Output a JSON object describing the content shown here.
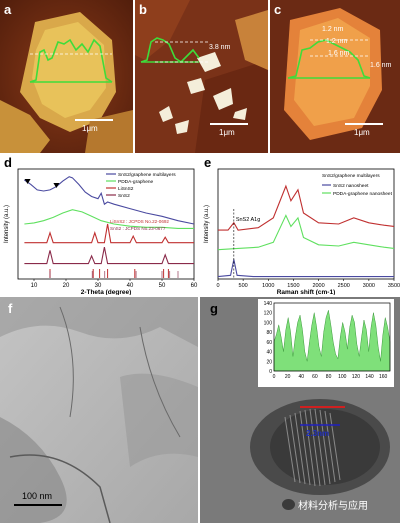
{
  "panels": {
    "a": {
      "label": "a",
      "scale": "1μm"
    },
    "b": {
      "label": "b",
      "scale": "1μm",
      "height": "3.8 nm"
    },
    "c": {
      "label": "c",
      "scale": "1μm",
      "heights": [
        "1.2 nm",
        "1.2 nm",
        "1.6 nm",
        "1.6 nm"
      ]
    },
    "d": {
      "label": "d"
    },
    "e": {
      "label": "e"
    },
    "f": {
      "label": "f",
      "scale": "100 nm"
    },
    "g": {
      "label": "g",
      "scale": "2.3nm"
    }
  },
  "watermark": {
    "text": "材料分析与应用"
  },
  "colors": {
    "afm_bg": "#6b2a14",
    "flake_yellow": "#e8c25a",
    "profile_green": "#3fdc3a",
    "sns2_graphene": "#4a4aa0",
    "pdda_graphene": "#5fe05f",
    "lisns2": "#c03030",
    "sns2": "#8a2a4a"
  },
  "chart_data": [
    {
      "type": "line",
      "panel": "d",
      "xlabel": "2-Theta (degree)",
      "ylabel": "Intensity (a.u.)",
      "xlim": [
        5,
        60
      ],
      "xticks": [
        10,
        20,
        30,
        40,
        50,
        60
      ],
      "legend_position": "top-right",
      "series": [
        {
          "name": "SnS2/graphene multilayers",
          "x": [
            7,
            9,
            11,
            13,
            15,
            17,
            19,
            21,
            22,
            24,
            26,
            28,
            30,
            31,
            32,
            33,
            35,
            40,
            45,
            50,
            55,
            60
          ],
          "y": [
            9.0,
            8.6,
            8.1,
            8.0,
            8.1,
            8.4,
            8.9,
            9.3,
            9.2,
            8.6,
            7.9,
            7.5,
            7.3,
            7.8,
            6.8,
            7.0,
            6.8,
            6.4,
            6.0,
            5.7,
            5.3,
            5.0
          ]
        },
        {
          "name": "PDDA-graphene",
          "x": [
            7,
            10,
            13,
            16,
            19,
            22,
            25,
            28,
            31,
            35,
            40,
            45,
            50,
            55,
            60
          ],
          "y": [
            5.0,
            5.1,
            5.3,
            5.6,
            6.0,
            6.3,
            6.1,
            5.7,
            5.3,
            5.0,
            4.8,
            4.7,
            4.7,
            4.6,
            4.6
          ]
        },
        {
          "name": "LiSnS2",
          "x": [
            7,
            14,
            15,
            16,
            20,
            28,
            29,
            30,
            32,
            33,
            34,
            40,
            41,
            42,
            50,
            51,
            52,
            60
          ],
          "y": [
            3.3,
            3.3,
            4.2,
            3.3,
            3.3,
            3.3,
            4.2,
            3.3,
            3.3,
            5.0,
            3.3,
            3.3,
            3.9,
            3.3,
            3.3,
            3.8,
            3.3,
            3.3
          ]
        },
        {
          "name": "SnS2",
          "x": [
            7,
            14,
            15,
            16,
            27,
            28,
            29,
            31,
            32,
            33,
            45,
            50,
            51,
            52,
            60
          ],
          "y": [
            1.4,
            1.4,
            2.6,
            1.4,
            1.4,
            2.1,
            1.4,
            1.4,
            2.9,
            1.4,
            1.4,
            1.4,
            2.2,
            1.4,
            1.4
          ]
        }
      ],
      "annotations": [
        "LiSnS2 : JCPDS No.22-0692",
        "SnS2 : JCPDS No.23-0677"
      ],
      "ref_lines_lisns2": [
        15,
        28.5,
        30.5,
        33,
        41.5,
        50.5,
        52
      ],
      "ref_lines_sns2": [
        15,
        28.2,
        32.1,
        41.9,
        50,
        52.4,
        55
      ]
    },
    {
      "type": "line",
      "panel": "e",
      "xlabel": "Raman shift (cm-1)",
      "ylabel": "Intensity (a.u.)",
      "xlim": [
        0,
        3500
      ],
      "xticks": [
        0,
        500,
        1000,
        1500,
        2000,
        2500,
        3000,
        3500
      ],
      "legend_position": "top-right",
      "legend_title": "SnS2/graphene multilayers",
      "peak_label": "SnS2 A1g",
      "series": [
        {
          "name": "SnS2/graphene multilayers",
          "x": [
            0,
            200,
            315,
            400,
            800,
            1100,
            1350,
            1450,
            1590,
            1700,
            2000,
            2400,
            2700,
            3000,
            3300,
            3500
          ],
          "y": [
            4.0,
            4.0,
            4.6,
            4.0,
            4.2,
            5.0,
            7.6,
            6.4,
            7.3,
            5.4,
            4.6,
            4.5,
            5.0,
            4.6,
            4.4,
            4.3
          ]
        },
        {
          "name": "SnS2 nanosheet",
          "x": [
            0,
            250,
            315,
            380,
            700,
            1500,
            3500
          ],
          "y": [
            0.2,
            0.3,
            1.6,
            0.3,
            0.2,
            0.2,
            0.2
          ]
        },
        {
          "name": "PDDA-graphene nanosheet",
          "x": [
            0,
            400,
            800,
            1100,
            1350,
            1450,
            1590,
            1700,
            2000,
            2400,
            2700,
            3000,
            3300,
            3500
          ],
          "y": [
            2.4,
            2.5,
            2.6,
            3.0,
            5.2,
            4.3,
            5.0,
            3.4,
            2.8,
            2.7,
            3.0,
            2.8,
            2.6,
            2.5
          ]
        }
      ]
    },
    {
      "type": "area",
      "panel": "g-inset",
      "xlim": [
        0,
        170
      ],
      "ylim": [
        0,
        140
      ],
      "xticks": [
        0,
        20,
        40,
        60,
        80,
        100,
        120,
        140,
        160
      ],
      "yticks": [
        0,
        20,
        40,
        60,
        80,
        100,
        120,
        140
      ],
      "values": [
        60,
        75,
        95,
        70,
        40,
        85,
        110,
        80,
        30,
        70,
        100,
        115,
        85,
        40,
        20,
        60,
        95,
        120,
        90,
        50,
        30,
        80,
        110,
        125,
        95,
        60,
        35,
        25,
        70,
        100,
        80,
        45,
        90,
        115,
        100,
        55,
        30,
        70,
        105,
        85,
        40,
        90,
        120,
        95,
        50,
        20,
        75,
        110,
        90,
        60
      ]
    }
  ]
}
